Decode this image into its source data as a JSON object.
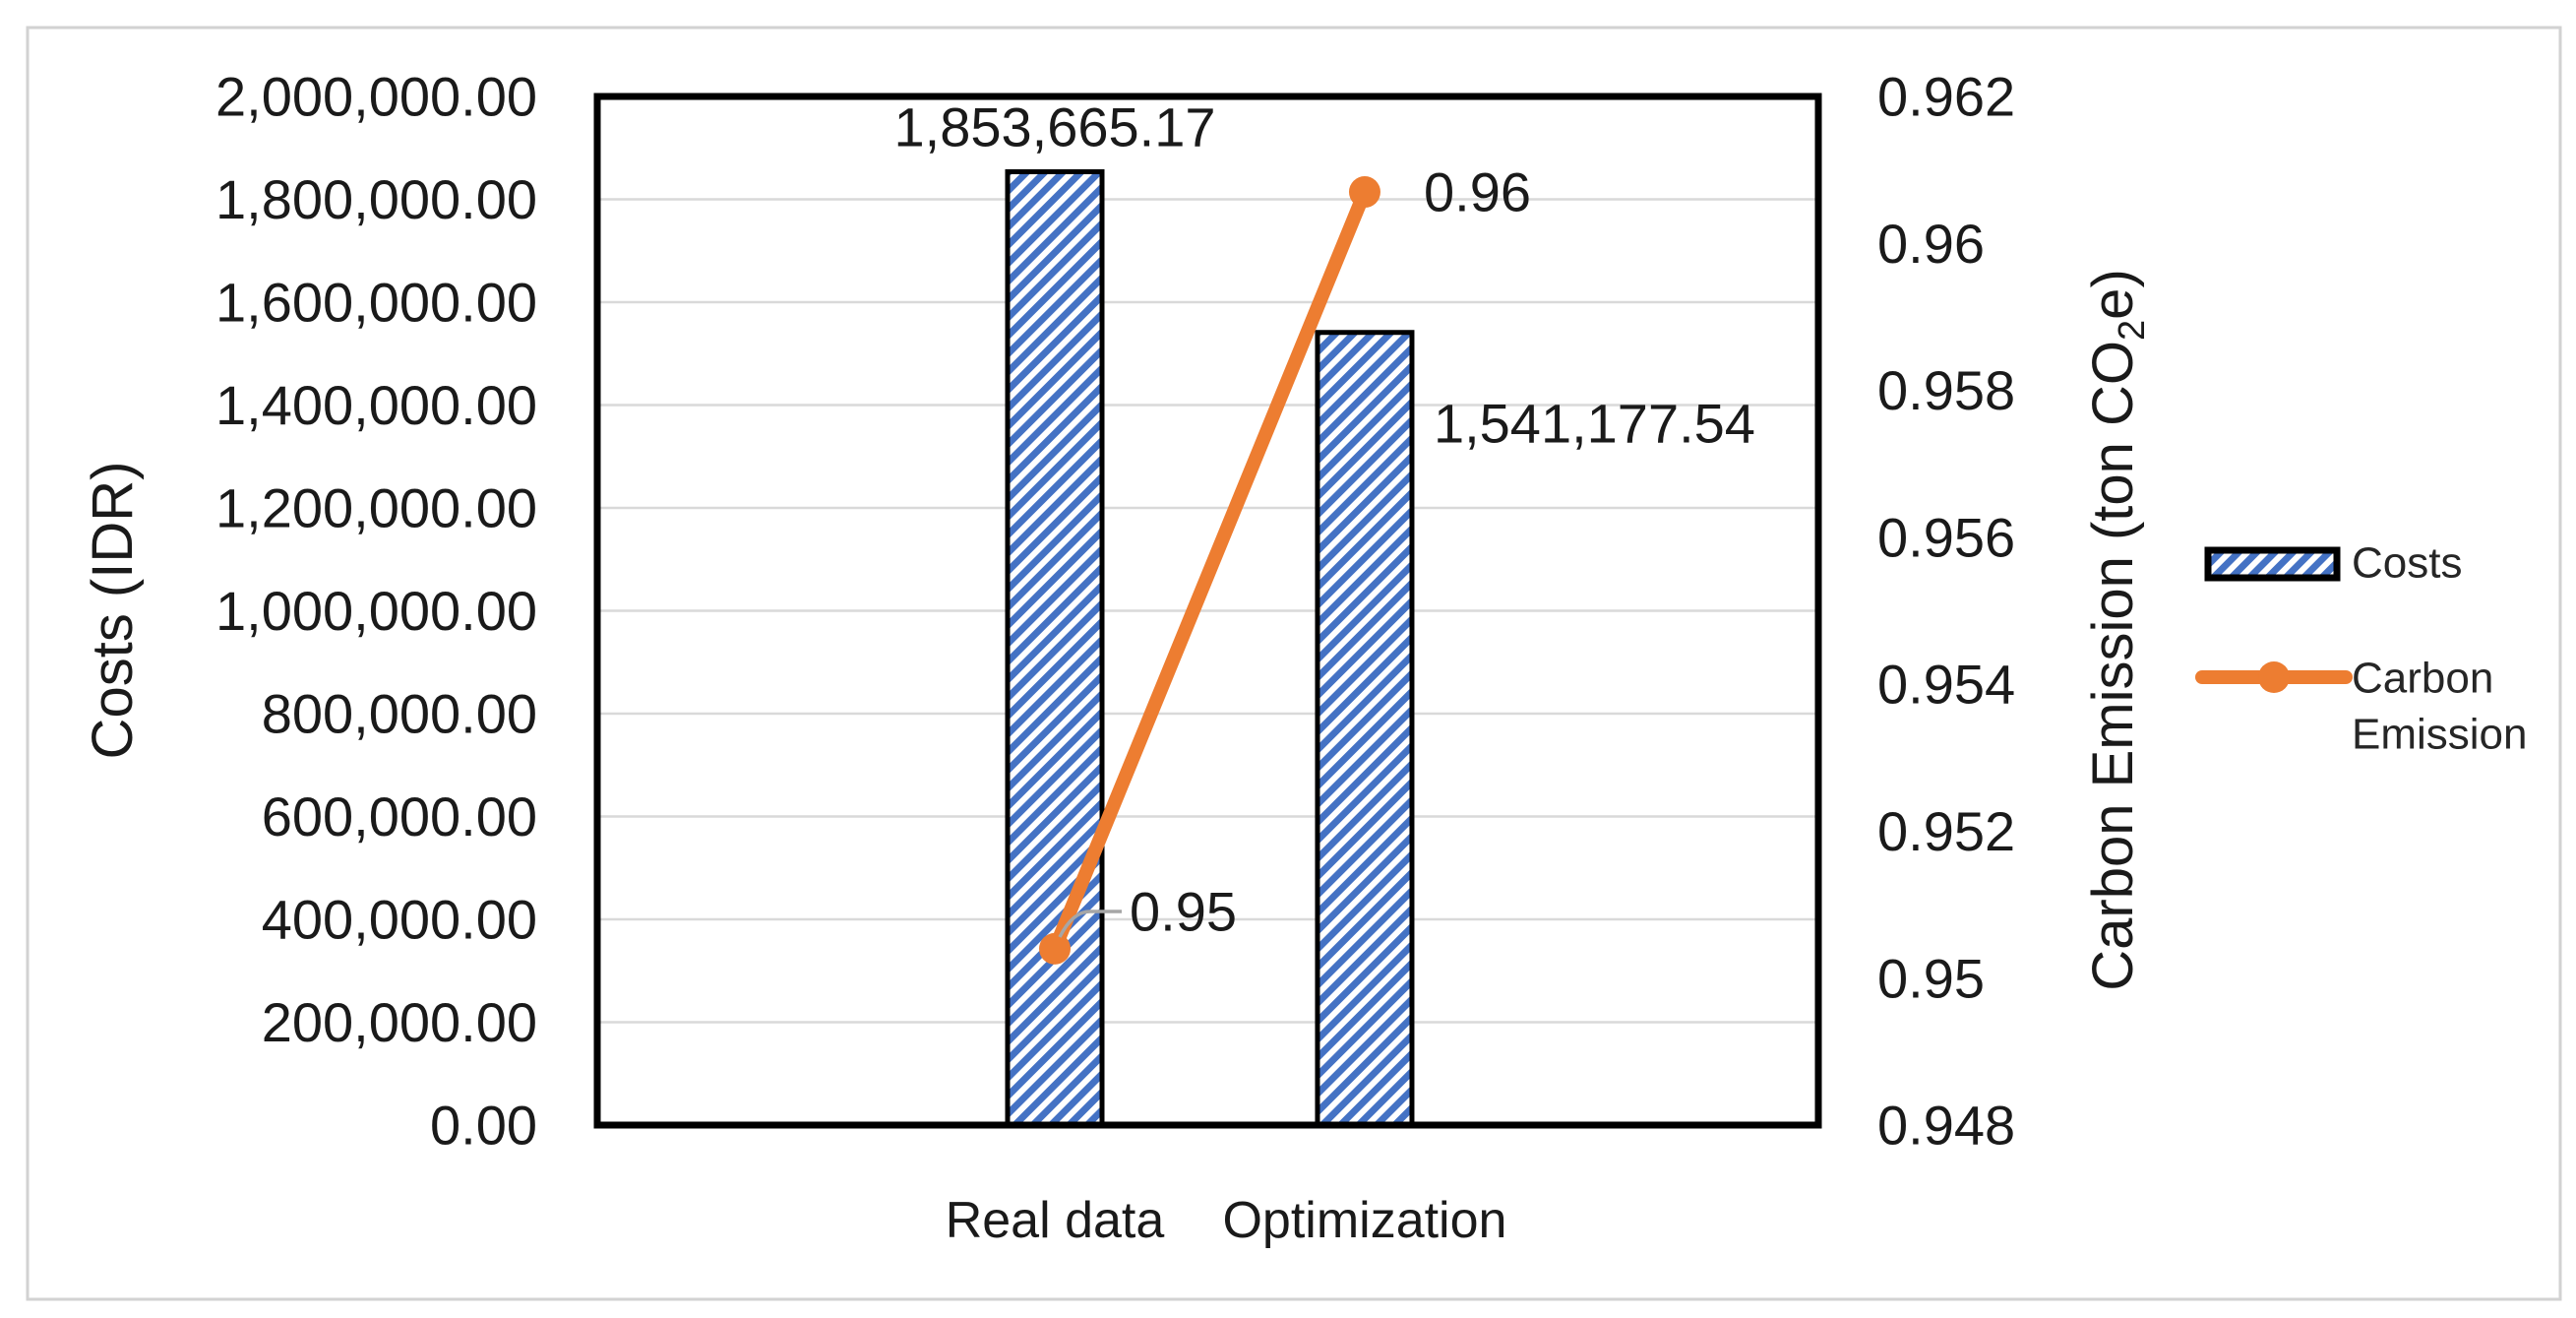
{
  "chart_data": {
    "type": "bar",
    "subtype": "combo-bar-line-dual-axis",
    "categories": [
      "Real data",
      "Optimization"
    ],
    "series": [
      {
        "name": "Costs",
        "type": "bar",
        "axis": "left",
        "values": [
          1853665.17,
          1541177.54
        ],
        "data_labels": [
          "1,853,665.17",
          "1,541,177.54"
        ],
        "color": "#4472C4",
        "fill_style": "diagonal-hatch",
        "border_color": "#000000"
      },
      {
        "name": "Carbon Emission",
        "type": "line",
        "axis": "right",
        "values": [
          0.9504,
          0.9607
        ],
        "data_labels": [
          "0.95",
          "0.96"
        ],
        "color": "#ED7D31",
        "marker": "circle"
      }
    ],
    "left_axis": {
      "title": "Costs (IDR)",
      "min": 0,
      "max": 2000000,
      "step": 200000,
      "tick_labels": [
        "2,000,000.00",
        "1,800,000.00",
        "1,600,000.00",
        "1,400,000.00",
        "1,200,000.00",
        "1,000,000.00",
        "800,000.00",
        "600,000.00",
        "400,000.00",
        "200,000.00",
        "0.00"
      ]
    },
    "right_axis": {
      "title": "Carbon Emission (ton CO2e)",
      "title_pre": "Carbon Emission (ton CO",
      "title_sub": "2",
      "title_post": "e)",
      "min": 0.948,
      "max": 0.962,
      "step": 0.002,
      "tick_labels": [
        "0.962",
        "0.96",
        "0.958",
        "0.956",
        "0.954",
        "0.952",
        "0.95",
        "0.948"
      ]
    },
    "legend": {
      "position": "right",
      "items": [
        {
          "label": "Costs",
          "lines": [
            "Costs"
          ],
          "swatch": "hatched-bar"
        },
        {
          "label": "Carbon Emission",
          "lines": [
            "Carbon",
            "Emission"
          ],
          "swatch": "line-marker"
        }
      ]
    },
    "grid": true,
    "gridlines": "horizontal-major-left-axis",
    "plot_border": true,
    "colors": {
      "bar_fill": "#4472C4",
      "bar_stroke": "#000000",
      "line": "#ED7D31",
      "gridline": "#D9D9D9",
      "leader_line": "#A6A6A6",
      "frame": "#D2D2D2",
      "text": "#1A1A1A"
    }
  }
}
